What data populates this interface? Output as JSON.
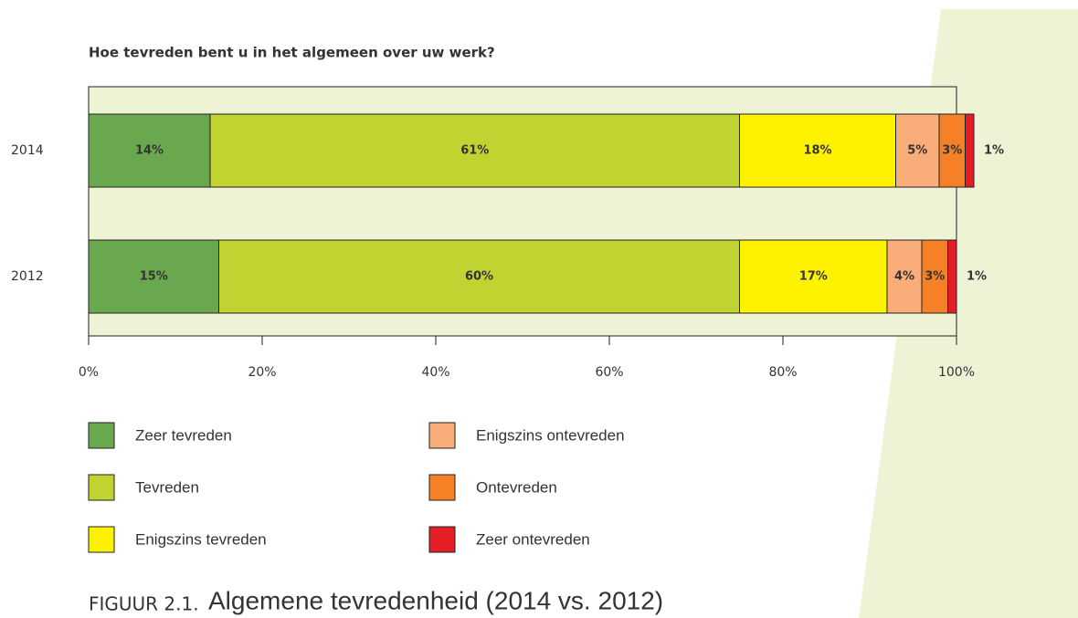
{
  "chart_data": {
    "type": "stacked_bar_horizontal",
    "title": "Hoe tevreden bent u in het algemeen over uw werk?",
    "caption_prefix": "FIGUUR 2.1.",
    "caption": "Algemene tevredenheid (2014 vs. 2012)",
    "categories": [
      "2014",
      "2012"
    ],
    "series": [
      {
        "name": "Zeer tevreden",
        "color": "#6aa84f",
        "label_color": "#ffffff",
        "values": [
          14,
          15
        ],
        "value_labels": [
          "14%",
          "15%"
        ]
      },
      {
        "name": "Tevreden",
        "color": "#c1d331",
        "label_color": "#555555",
        "values": [
          61,
          60
        ],
        "value_labels": [
          "61%",
          "60%"
        ]
      },
      {
        "name": "Enigszins tevreden",
        "color": "#fff200",
        "label_color": "#555555",
        "values": [
          18,
          17
        ],
        "value_labels": [
          "18%",
          "17%"
        ]
      },
      {
        "name": "Enigszins ontevreden",
        "color": "#f9ad78",
        "label_color": "#ffffff",
        "values": [
          5,
          4
        ],
        "value_labels": [
          "5%",
          "4%"
        ]
      },
      {
        "name": "Ontevreden",
        "color": "#f58025",
        "label_color": "#ffffff",
        "values": [
          3,
          3
        ],
        "value_labels": [
          "3%",
          "3%"
        ]
      },
      {
        "name": "Zeer ontevreden",
        "color": "#e31e24",
        "label_color": "#555555",
        "values": [
          1,
          1
        ],
        "value_labels": [
          "1%",
          "1%"
        ]
      }
    ],
    "xlim": [
      0,
      100
    ],
    "xticks": [
      {
        "value": 0,
        "label": "0%"
      },
      {
        "value": 20,
        "label": "20%"
      },
      {
        "value": 40,
        "label": "40%"
      },
      {
        "value": 60,
        "label": "60%"
      },
      {
        "value": 80,
        "label": "80%"
      },
      {
        "value": 100,
        "label": "100%"
      }
    ]
  }
}
